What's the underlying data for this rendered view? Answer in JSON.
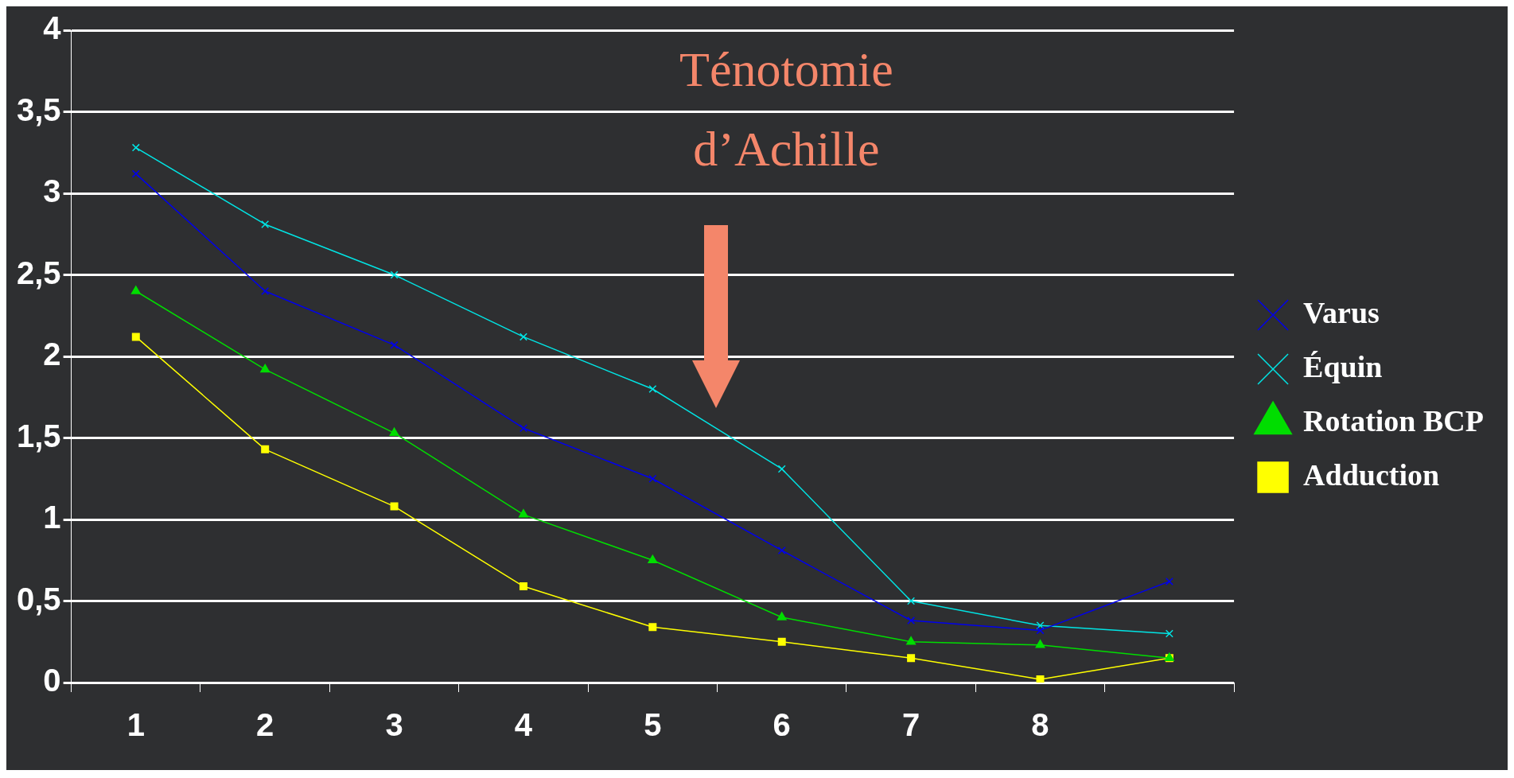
{
  "chart_data": {
    "type": "line",
    "categories": [
      "1",
      "2",
      "3",
      "4",
      "5",
      "6",
      "7",
      "8",
      null
    ],
    "series": [
      {
        "name": "Adduction",
        "color": "#ffff00",
        "marker": "square",
        "values": [
          2.12,
          1.43,
          1.08,
          0.59,
          0.34,
          0.25,
          0.15,
          0.02,
          0.15
        ]
      },
      {
        "name": "Rotation BCP",
        "color": "#00dd00",
        "marker": "triangle",
        "values": [
          2.4,
          1.92,
          1.53,
          1.03,
          0.75,
          0.4,
          0.25,
          0.23,
          0.15
        ]
      },
      {
        "name": "Équin",
        "color": "#00e5e5",
        "marker": "cross",
        "values": [
          3.28,
          2.81,
          2.5,
          2.12,
          1.8,
          1.31,
          0.5,
          0.35,
          0.3
        ]
      },
      {
        "name": "Varus",
        "color": "#0000ee",
        "marker": "cross",
        "values": [
          3.12,
          2.4,
          2.07,
          1.56,
          1.25,
          0.81,
          0.38,
          0.32,
          0.62
        ]
      }
    ],
    "ylim": [
      0,
      4
    ],
    "yticks": [
      0,
      {
        "value": 0.5,
        "label": "0,5"
      },
      1,
      {
        "value": 1.5,
        "label": "1,5"
      },
      2,
      {
        "value": 2.5,
        "label": "2,5"
      },
      3,
      {
        "value": 3.5,
        "label": "3,5"
      },
      4
    ],
    "grid": "y",
    "legend": "right",
    "line_style": "solid",
    "annotations": [
      "Ténotomie d’Achille"
    ]
  }
}
